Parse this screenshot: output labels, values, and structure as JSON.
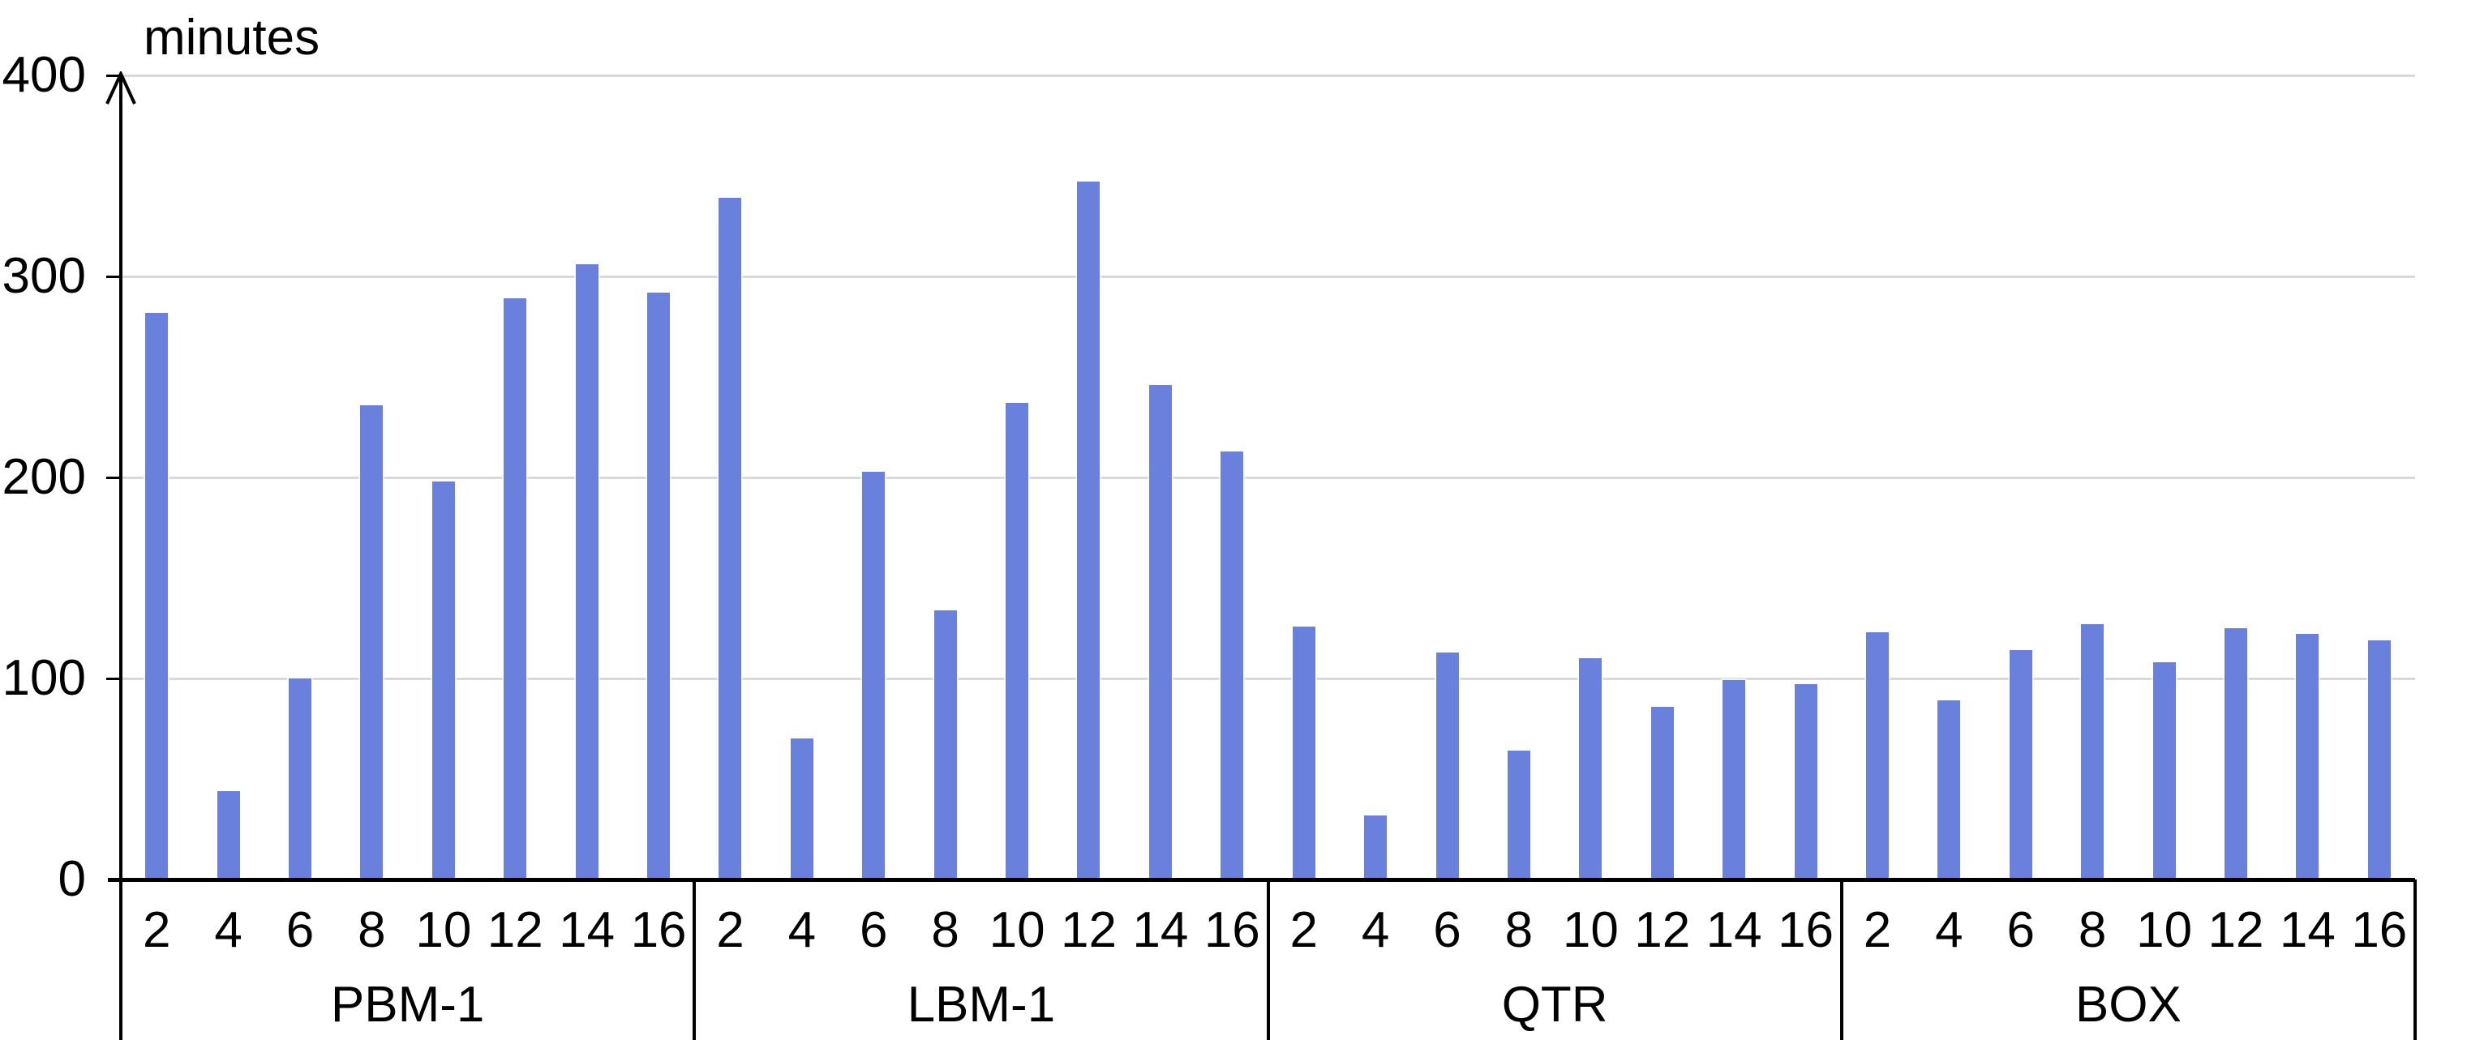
{
  "title": "minutes",
  "colors": {
    "bar_fill": "#6a80dd",
    "gridline": "#d9d9d9",
    "axis": "#000000",
    "background": "#ffffff"
  },
  "y_axis": {
    "title": "minutes",
    "ticks": [
      0,
      100,
      200,
      300,
      400
    ],
    "max": 400
  },
  "chart_data": {
    "type": "bar",
    "title": "minutes",
    "ylabel": "minutes",
    "ylim": [
      0,
      400
    ],
    "grid": "horizontal",
    "legend": "none",
    "x_tick_labels": [
      "2",
      "4",
      "6",
      "8",
      "10",
      "12",
      "14",
      "16"
    ],
    "groups": [
      {
        "label": "PBM-1",
        "values": [
          282,
          44,
          100,
          236,
          198,
          289,
          306,
          292
        ]
      },
      {
        "label": "LBM-1",
        "values": [
          339,
          70,
          203,
          134,
          237,
          347,
          246,
          213
        ]
      },
      {
        "label": "QTR",
        "values": [
          126,
          32,
          113,
          64,
          110,
          86,
          99,
          97
        ]
      },
      {
        "label": "BOX",
        "values": [
          123,
          89,
          114,
          127,
          108,
          125,
          122,
          119
        ]
      }
    ]
  }
}
